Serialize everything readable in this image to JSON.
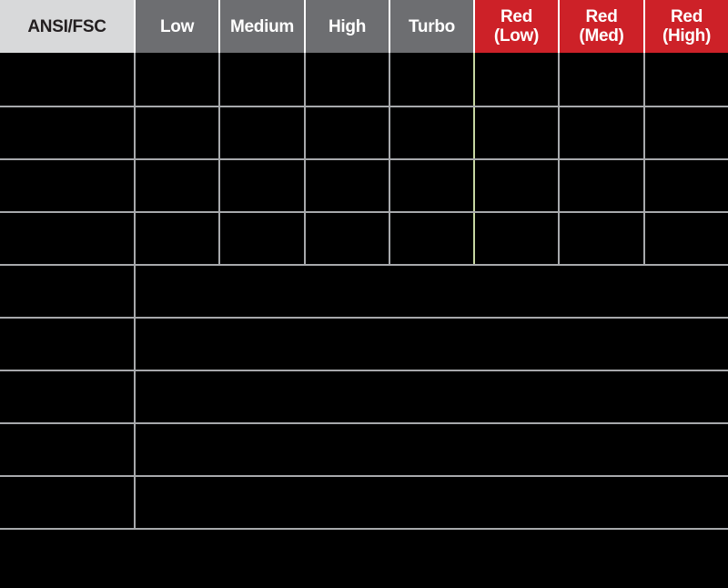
{
  "header": {
    "corner": {
      "label": "ANSI/FSC"
    },
    "columns": [
      {
        "label": "Low"
      },
      {
        "label": "Medium"
      },
      {
        "label": "High"
      },
      {
        "label": "Turbo"
      }
    ],
    "red_columns": [
      {
        "line1": "Red",
        "line2": "(Low)"
      },
      {
        "line1": "Red",
        "line2": "(Med)"
      },
      {
        "line1": "Red",
        "line2": "(High)"
      }
    ]
  },
  "body": {
    "full_grid_row_count": 4,
    "merged_row_count": 5,
    "cells_text": ""
  },
  "colors": {
    "corner_bg": "#d8d9da",
    "corner_text": "#231f20",
    "mode_header_bg": "#6d6e71",
    "red_header_bg": "#cd2128",
    "header_text": "#ffffff",
    "header_divider": "#ffffff",
    "grid_line": "#a7a9ac",
    "green_divider": "#c6d7a2",
    "cell_bg": "#000000"
  }
}
